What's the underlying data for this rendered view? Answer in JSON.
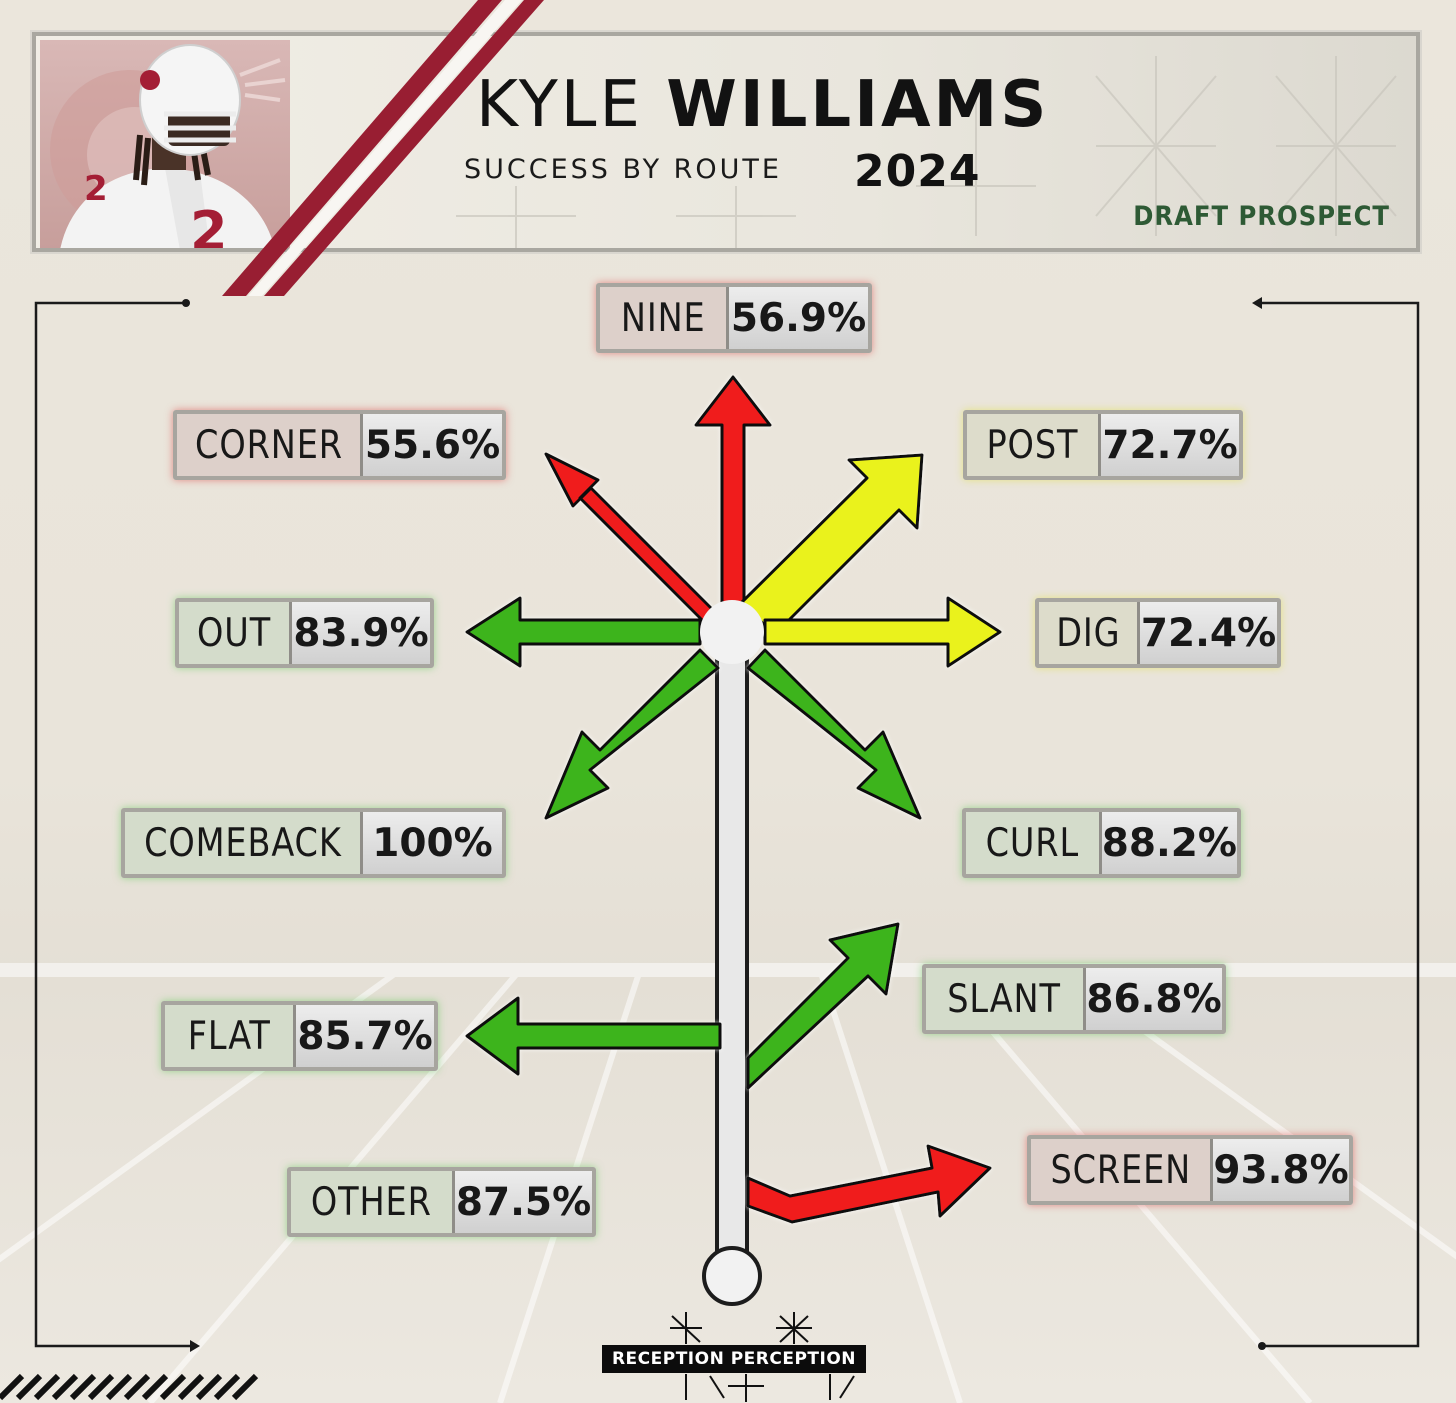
{
  "header": {
    "first_name": "KYLE",
    "last_name": "WILLIAMS",
    "subtitle": "SUCCESS BY ROUTE",
    "year": "2024",
    "tag": "DRAFT PROSPECT",
    "jersey_number": "2"
  },
  "routes": {
    "nine": {
      "label": "NINE",
      "value": "56.9%",
      "color": "red"
    },
    "corner": {
      "label": "CORNER",
      "value": "55.6%",
      "color": "red"
    },
    "post": {
      "label": "POST",
      "value": "72.7%",
      "color": "yellow"
    },
    "out": {
      "label": "OUT",
      "value": "83.9%",
      "color": "green"
    },
    "dig": {
      "label": "DIG",
      "value": "72.4%",
      "color": "yellow"
    },
    "comeback": {
      "label": "COMEBACK",
      "value": "100%",
      "color": "green"
    },
    "curl": {
      "label": "CURL",
      "value": "88.2%",
      "color": "green"
    },
    "slant": {
      "label": "SLANT",
      "value": "86.8%",
      "color": "green"
    },
    "flat": {
      "label": "FLAT",
      "value": "85.7%",
      "color": "green"
    },
    "screen": {
      "label": "SCREEN",
      "value": "93.8%",
      "color": "red"
    },
    "other": {
      "label": "OTHER",
      "value": "87.5%",
      "color": "green"
    }
  },
  "colors": {
    "red": "#f01e1e",
    "yellow": "#eaf21e",
    "green": "#3cb41e",
    "accent_maroon": "#981e32",
    "prospect_green": "#2e5a35"
  },
  "footer": {
    "brand": "RECEPTION PERCEPTION"
  }
}
